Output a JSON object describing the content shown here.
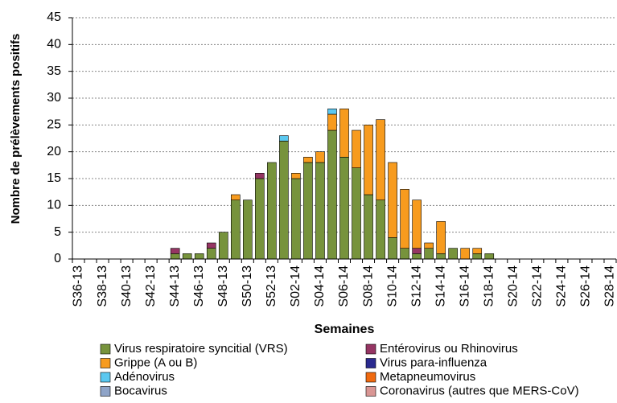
{
  "chart_data": {
    "type": "stacked_bar",
    "y_label": "Nombre de prélèvements positifs",
    "x_label": "Semaines",
    "categories": [
      "S36-13",
      null,
      "S38-13",
      null,
      "S40-13",
      null,
      "S42-13",
      null,
      "S44-13",
      null,
      "S46-13",
      null,
      "S48-13",
      null,
      "S50-13",
      null,
      "S52-13",
      null,
      "S02-14",
      null,
      "S04-14",
      null,
      "S06-14",
      null,
      "S08-14",
      null,
      "S10-14",
      null,
      "S12-14",
      null,
      "S14-14",
      null,
      "S16-14",
      null,
      "S18-14",
      null,
      "S20-14",
      null,
      "S22-14",
      null,
      "S24-14",
      null,
      "S26-14",
      null,
      "S28-14"
    ],
    "ylim": [
      0,
      45
    ],
    "yticks": [
      0,
      5,
      10,
      15,
      20,
      25,
      30,
      35,
      40,
      45
    ],
    "grid": true,
    "series": [
      {
        "name": "Virus respiratoire syncitial (VRS)",
        "color": "#77933c",
        "values": [
          0,
          0,
          0,
          0,
          0,
          0,
          0,
          0,
          1,
          1,
          1,
          2,
          5,
          11,
          11,
          15,
          18,
          22,
          15,
          18,
          18,
          24,
          19,
          17,
          12,
          11,
          4,
          2,
          1,
          2,
          1,
          2,
          0,
          1,
          1,
          0,
          0,
          0,
          0,
          0,
          0,
          0,
          0,
          0,
          0
        ]
      },
      {
        "name": "Entérovirus ou Rhinovirus",
        "color": "#953563",
        "values": [
          0,
          0,
          0,
          0,
          0,
          0,
          0,
          0,
          1,
          0,
          0,
          1,
          0,
          0,
          0,
          1,
          0,
          0,
          0,
          0,
          0,
          0,
          0,
          0,
          0,
          0,
          0,
          0,
          1,
          0,
          0,
          0,
          0,
          0,
          0,
          0,
          0,
          0,
          0,
          0,
          0,
          0,
          0,
          0,
          0
        ]
      },
      {
        "name": "Grippe (A ou B)",
        "color": "#f79b1e",
        "values": [
          0,
          0,
          0,
          0,
          0,
          0,
          0,
          0,
          0,
          0,
          0,
          0,
          0,
          1,
          0,
          0,
          0,
          0,
          1,
          1,
          2,
          3,
          9,
          7,
          13,
          15,
          14,
          11,
          9,
          1,
          6,
          0,
          2,
          1,
          0,
          0,
          0,
          0,
          0,
          0,
          0,
          0,
          0,
          0,
          0
        ]
      },
      {
        "name": "Virus para-influenza",
        "color": "#2a2a8f",
        "values": [
          0,
          0,
          0,
          0,
          0,
          0,
          0,
          0,
          0,
          0,
          0,
          0,
          0,
          0,
          0,
          0,
          0,
          0,
          0,
          0,
          0,
          0,
          0,
          0,
          0,
          0,
          0,
          0,
          0,
          0,
          0,
          0,
          0,
          0,
          0,
          0,
          0,
          0,
          0,
          0,
          0,
          0,
          0,
          0,
          0
        ]
      },
      {
        "name": "Adénovirus",
        "color": "#5bc8f0",
        "values": [
          0,
          0,
          0,
          0,
          0,
          0,
          0,
          0,
          0,
          0,
          0,
          0,
          0,
          0,
          0,
          0,
          0,
          1,
          0,
          0,
          0,
          1,
          0,
          0,
          0,
          0,
          0,
          0,
          0,
          0,
          0,
          0,
          0,
          0,
          0,
          0,
          0,
          0,
          0,
          0,
          0,
          0,
          0,
          0,
          0
        ]
      },
      {
        "name": "Metapneumovirus",
        "color": "#f06a10",
        "values": [
          0,
          0,
          0,
          0,
          0,
          0,
          0,
          0,
          0,
          0,
          0,
          0,
          0,
          0,
          0,
          0,
          0,
          0,
          0,
          0,
          0,
          0,
          0,
          0,
          0,
          0,
          0,
          0,
          0,
          0,
          0,
          0,
          0,
          0,
          0,
          0,
          0,
          0,
          0,
          0,
          0,
          0,
          0,
          0,
          0
        ]
      },
      {
        "name": "Bocavirus",
        "color": "#8fa4c8",
        "values": [
          0,
          0,
          0,
          0,
          0,
          0,
          0,
          0,
          0,
          0,
          0,
          0,
          0,
          0,
          0,
          0,
          0,
          0,
          0,
          0,
          0,
          0,
          0,
          0,
          0,
          0,
          0,
          0,
          0,
          0,
          0,
          0,
          0,
          0,
          0,
          0,
          0,
          0,
          0,
          0,
          0,
          0,
          0,
          0,
          0
        ]
      },
      {
        "name": "Coronavirus (autres que MERS-CoV)",
        "color": "#d99694",
        "values": [
          0,
          0,
          0,
          0,
          0,
          0,
          0,
          0,
          0,
          0,
          0,
          0,
          0,
          0,
          0,
          0,
          0,
          0,
          0,
          0,
          0,
          0,
          0,
          0,
          0,
          0,
          0,
          0,
          0,
          0,
          0,
          0,
          0,
          0,
          0,
          0,
          0,
          0,
          0,
          0,
          0,
          0,
          0,
          0,
          0
        ]
      }
    ]
  }
}
